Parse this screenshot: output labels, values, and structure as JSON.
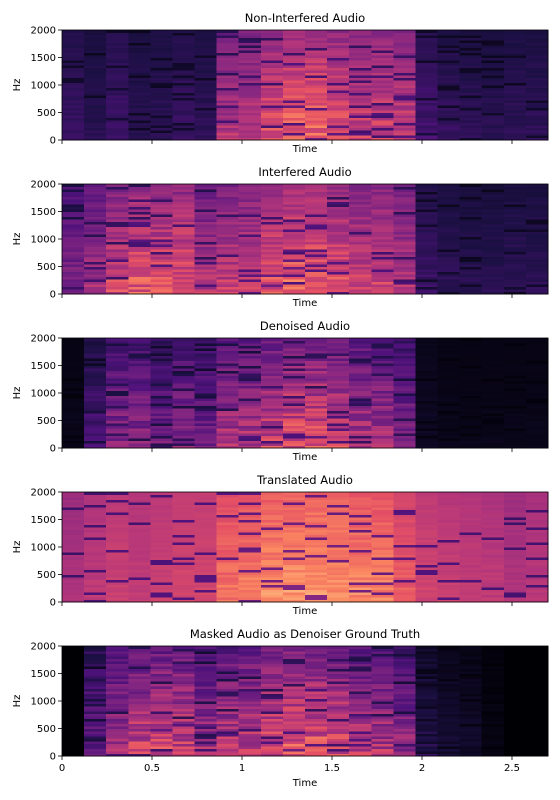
{
  "chart_data": [
    {
      "type": "heatmap",
      "title": "Non-Interfered Audio",
      "xlabel": "Time",
      "ylabel": "Hz",
      "y_ticks": [
        "0",
        "500",
        "1000",
        "1500",
        "2000"
      ],
      "x_ticks": [],
      "ylim": [
        0,
        2000
      ],
      "xlim": [
        0,
        2.7
      ],
      "grid": "off",
      "legend": "none",
      "frame_energy": [
        0.22,
        0.18,
        0.24,
        0.18,
        0.2,
        0.22,
        0.2,
        0.58,
        0.62,
        0.72,
        0.78,
        0.8,
        0.72,
        0.66,
        0.68,
        0.64,
        0.26,
        0.22,
        0.2,
        0.18,
        0.2,
        0.2
      ],
      "frame_floor": [
        0.1,
        0.08,
        0.1,
        0.08,
        0.08,
        0.1,
        0.08,
        0.2,
        0.22,
        0.25,
        0.28,
        0.28,
        0.25,
        0.24,
        0.24,
        0.22,
        0.1,
        0.08,
        0.08,
        0.08,
        0.08,
        0.08
      ]
    },
    {
      "type": "heatmap",
      "title": "Interfered Audio",
      "xlabel": "Time",
      "ylabel": "Hz",
      "y_ticks": [
        "0",
        "500",
        "1000",
        "1500",
        "2000"
      ],
      "x_ticks": [],
      "ylim": [
        0,
        2000
      ],
      "xlim": [
        0,
        2.7
      ],
      "grid": "off",
      "legend": "none",
      "frame_energy": [
        0.45,
        0.55,
        0.7,
        0.78,
        0.74,
        0.76,
        0.6,
        0.64,
        0.66,
        0.74,
        0.8,
        0.78,
        0.74,
        0.66,
        0.68,
        0.6,
        0.24,
        0.2,
        0.18,
        0.18,
        0.2,
        0.2
      ],
      "frame_floor": [
        0.14,
        0.16,
        0.18,
        0.2,
        0.2,
        0.2,
        0.16,
        0.2,
        0.22,
        0.24,
        0.26,
        0.26,
        0.24,
        0.22,
        0.22,
        0.2,
        0.08,
        0.07,
        0.07,
        0.07,
        0.07,
        0.07
      ]
    },
    {
      "type": "heatmap",
      "title": "Denoised Audio",
      "xlabel": "Time",
      "ylabel": "Hz",
      "y_ticks": [
        "0",
        "500",
        "1000",
        "1500",
        "2000"
      ],
      "x_ticks": [],
      "ylim": [
        0,
        2000
      ],
      "xlim": [
        0,
        2.7
      ],
      "grid": "off",
      "legend": "none",
      "frame_energy": [
        0.05,
        0.3,
        0.5,
        0.5,
        0.42,
        0.5,
        0.44,
        0.6,
        0.62,
        0.7,
        0.76,
        0.76,
        0.7,
        0.62,
        0.6,
        0.46,
        0.08,
        0.05,
        0.05,
        0.05,
        0.05,
        0.05
      ],
      "frame_floor": [
        0.02,
        0.04,
        0.06,
        0.06,
        0.05,
        0.06,
        0.05,
        0.08,
        0.08,
        0.1,
        0.1,
        0.1,
        0.1,
        0.08,
        0.08,
        0.06,
        0.02,
        0.02,
        0.02,
        0.02,
        0.02,
        0.02
      ]
    },
    {
      "type": "heatmap",
      "title": "Translated Audio",
      "xlabel": "Time",
      "ylabel": "Hz",
      "y_ticks": [
        "0",
        "500",
        "1000",
        "1500",
        "2000"
      ],
      "x_ticks": [],
      "ylim": [
        0,
        2000
      ],
      "xlim": [
        0,
        2.7
      ],
      "grid": "off",
      "legend": "none",
      "frame_energy": [
        0.5,
        0.55,
        0.58,
        0.56,
        0.58,
        0.6,
        0.6,
        0.76,
        0.8,
        0.84,
        0.86,
        0.86,
        0.84,
        0.82,
        0.8,
        0.7,
        0.6,
        0.58,
        0.56,
        0.55,
        0.52,
        0.54
      ],
      "frame_floor": [
        0.4,
        0.45,
        0.48,
        0.46,
        0.48,
        0.5,
        0.5,
        0.52,
        0.54,
        0.55,
        0.56,
        0.56,
        0.55,
        0.54,
        0.53,
        0.5,
        0.48,
        0.46,
        0.45,
        0.44,
        0.4,
        0.42
      ]
    },
    {
      "type": "heatmap",
      "title": "Masked Audio as Denoiser Ground Truth",
      "xlabel": "Time",
      "ylabel": "Hz",
      "y_ticks": [
        "0",
        "500",
        "1000",
        "1500",
        "2000"
      ],
      "x_ticks": [
        "0",
        "0.5",
        "1",
        "1.5",
        "2",
        "2.5"
      ],
      "x_tick_values": [
        0,
        0.5,
        1,
        1.5,
        2,
        2.5
      ],
      "ylim": [
        0,
        2000
      ],
      "xlim": [
        0,
        2.7
      ],
      "grid": "off",
      "legend": "none",
      "frame_energy": [
        0.0,
        0.42,
        0.62,
        0.7,
        0.74,
        0.72,
        0.58,
        0.66,
        0.68,
        0.74,
        0.8,
        0.8,
        0.74,
        0.64,
        0.62,
        0.54,
        0.2,
        0.12,
        0.1,
        0.04,
        0.0,
        0.0
      ],
      "frame_floor": [
        0.0,
        0.0,
        0.04,
        0.06,
        0.06,
        0.06,
        0.04,
        0.06,
        0.08,
        0.1,
        0.1,
        0.1,
        0.1,
        0.08,
        0.06,
        0.04,
        0.0,
        0.0,
        0.0,
        0.0,
        0.0,
        0.0
      ]
    }
  ],
  "colormap": [
    "#000004",
    "#1c1044",
    "#4f127b",
    "#812581",
    "#b5367a",
    "#e55064",
    "#fb8761",
    "#fec287",
    "#fcfdbf"
  ]
}
